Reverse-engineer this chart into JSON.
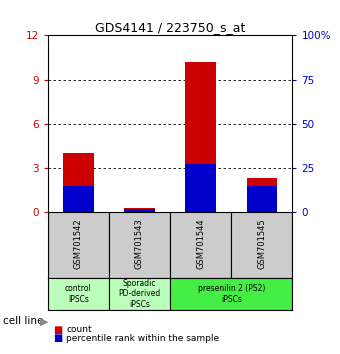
{
  "title": "GDS4141 / 223750_s_at",
  "samples": [
    "GSM701542",
    "GSM701543",
    "GSM701544",
    "GSM701545"
  ],
  "count_values": [
    4.0,
    0.3,
    10.2,
    2.3
  ],
  "percentile_values": [
    15.0,
    2.0,
    27.5,
    15.0
  ],
  "ylim_left": [
    0,
    12
  ],
  "ylim_right": [
    0,
    100
  ],
  "yticks_left": [
    0,
    3,
    6,
    9,
    12
  ],
  "yticks_right": [
    0,
    25,
    50,
    75,
    100
  ],
  "count_color": "#cc0000",
  "percentile_color": "#0000cc",
  "sample_box_color": "#cccccc",
  "group_defs": [
    {
      "start": 0,
      "end": 0,
      "label": "control\nIPSCs",
      "color": "#bbffbb"
    },
    {
      "start": 1,
      "end": 1,
      "label": "Sporadic\nPD-derived\niPSCs",
      "color": "#bbffbb"
    },
    {
      "start": 2,
      "end": 3,
      "label": "presenilin 2 (PS2)\niPSCs",
      "color": "#44ee44"
    }
  ],
  "legend_count_label": "count",
  "legend_percentile_label": "percentile rank within the sample",
  "cell_line_label": "cell line"
}
